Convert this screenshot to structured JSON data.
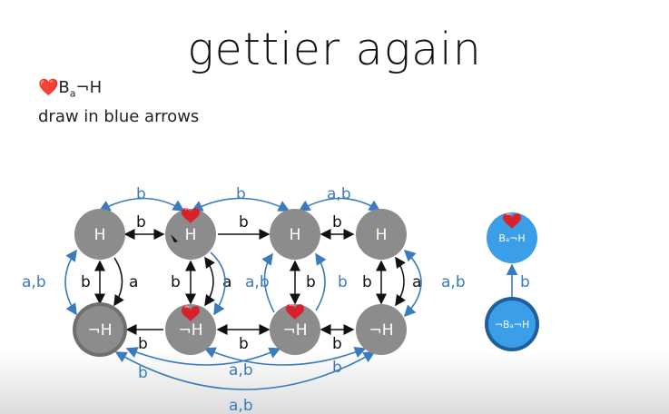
{
  "title": "gettier again",
  "notes": {
    "line1_heart": "❤️",
    "line1_text": "B",
    "line1_sub": "a",
    "line1_rest": "¬H",
    "line2": "draw in blue arrows"
  },
  "colors": {
    "node_gray": "#8c8c8c",
    "node_blue": "#3a9ee8",
    "arrow_blue": "#3a7bbf",
    "arrow_black": "#111111",
    "heart": "#d6232b"
  },
  "nodes": {
    "top1": "H",
    "top2": "H",
    "top3": "H",
    "top4": "H",
    "bot1": "¬H",
    "bot2": "¬H",
    "bot3": "¬H",
    "bot4": "¬H",
    "right_top": "Bₐ¬H",
    "right_bottom": "¬Bₐ¬H"
  },
  "edge_labels": {
    "black_b": "b",
    "black_a": "a",
    "blue_b": "b",
    "blue_ab": "a,b"
  },
  "icons": {
    "heart": "heart-icon"
  }
}
